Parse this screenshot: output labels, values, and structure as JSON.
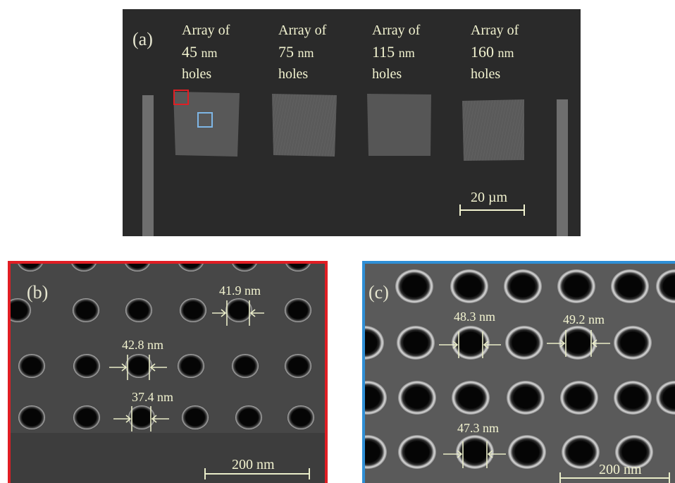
{
  "panel_a": {
    "label": "(a)",
    "arrays": [
      {
        "line1": "Array of",
        "size": "45",
        "unit": "nm",
        "line3": "holes"
      },
      {
        "line1": "Array of",
        "size": "75",
        "unit": "nm",
        "line3": "holes"
      },
      {
        "line1": "Array of",
        "size": "115",
        "unit": "nm",
        "line3": "holes"
      },
      {
        "line1": "Array of",
        "size": "160",
        "unit": "nm",
        "line3": "holes"
      }
    ],
    "scale_bar": "20 µm",
    "marker_colors": {
      "red": "#e01e24",
      "blue": "#7eb6e6"
    }
  },
  "panel_b": {
    "label": "(b)",
    "border_color": "#e01e24",
    "measurements": [
      "41.9 nm",
      "42.8 nm",
      "37.4 nm"
    ],
    "scale_bar": "200 nm"
  },
  "panel_c": {
    "label": "(c)",
    "border_color": "#2f8fd6",
    "measurements": [
      "48.3 nm",
      "49.2 nm",
      "47.3 nm"
    ],
    "scale_bar": "200 nm"
  }
}
